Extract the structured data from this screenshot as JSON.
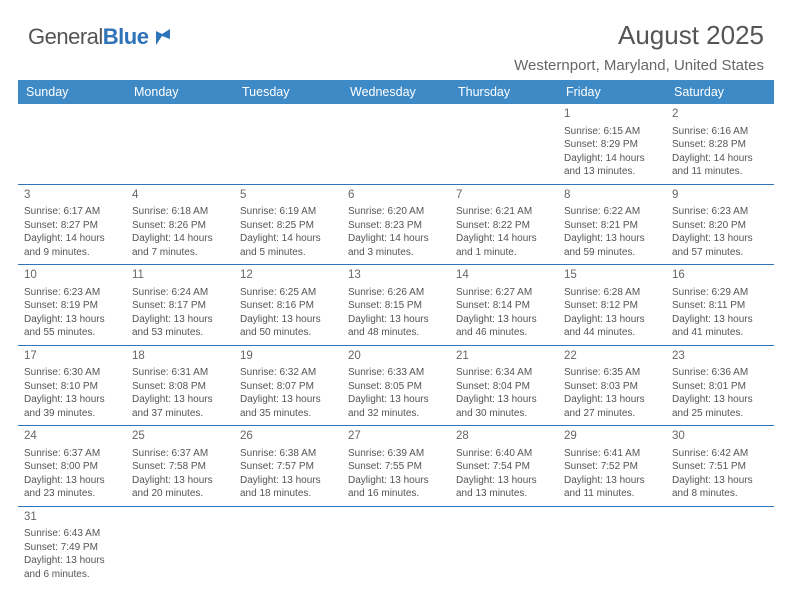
{
  "logo": {
    "part1": "General",
    "part2": "Blue"
  },
  "title": "August 2025",
  "location": "Westernport, Maryland, United States",
  "colors": {
    "header_bg": "#3d8ac7",
    "header_text": "#ffffff",
    "rule": "#2f73b8",
    "body_text": "#555555",
    "logo_gray": "#555555",
    "logo_blue": "#2f73b8"
  },
  "dayNames": [
    "Sunday",
    "Monday",
    "Tuesday",
    "Wednesday",
    "Thursday",
    "Friday",
    "Saturday"
  ],
  "weeks": [
    [
      null,
      null,
      null,
      null,
      null,
      {
        "n": "1",
        "sr": "6:15 AM",
        "ss": "8:29 PM",
        "dl": "14 hours and 13 minutes."
      },
      {
        "n": "2",
        "sr": "6:16 AM",
        "ss": "8:28 PM",
        "dl": "14 hours and 11 minutes."
      }
    ],
    [
      {
        "n": "3",
        "sr": "6:17 AM",
        "ss": "8:27 PM",
        "dl": "14 hours and 9 minutes."
      },
      {
        "n": "4",
        "sr": "6:18 AM",
        "ss": "8:26 PM",
        "dl": "14 hours and 7 minutes."
      },
      {
        "n": "5",
        "sr": "6:19 AM",
        "ss": "8:25 PM",
        "dl": "14 hours and 5 minutes."
      },
      {
        "n": "6",
        "sr": "6:20 AM",
        "ss": "8:23 PM",
        "dl": "14 hours and 3 minutes."
      },
      {
        "n": "7",
        "sr": "6:21 AM",
        "ss": "8:22 PM",
        "dl": "14 hours and 1 minute."
      },
      {
        "n": "8",
        "sr": "6:22 AM",
        "ss": "8:21 PM",
        "dl": "13 hours and 59 minutes."
      },
      {
        "n": "9",
        "sr": "6:23 AM",
        "ss": "8:20 PM",
        "dl": "13 hours and 57 minutes."
      }
    ],
    [
      {
        "n": "10",
        "sr": "6:23 AM",
        "ss": "8:19 PM",
        "dl": "13 hours and 55 minutes."
      },
      {
        "n": "11",
        "sr": "6:24 AM",
        "ss": "8:17 PM",
        "dl": "13 hours and 53 minutes."
      },
      {
        "n": "12",
        "sr": "6:25 AM",
        "ss": "8:16 PM",
        "dl": "13 hours and 50 minutes."
      },
      {
        "n": "13",
        "sr": "6:26 AM",
        "ss": "8:15 PM",
        "dl": "13 hours and 48 minutes."
      },
      {
        "n": "14",
        "sr": "6:27 AM",
        "ss": "8:14 PM",
        "dl": "13 hours and 46 minutes."
      },
      {
        "n": "15",
        "sr": "6:28 AM",
        "ss": "8:12 PM",
        "dl": "13 hours and 44 minutes."
      },
      {
        "n": "16",
        "sr": "6:29 AM",
        "ss": "8:11 PM",
        "dl": "13 hours and 41 minutes."
      }
    ],
    [
      {
        "n": "17",
        "sr": "6:30 AM",
        "ss": "8:10 PM",
        "dl": "13 hours and 39 minutes."
      },
      {
        "n": "18",
        "sr": "6:31 AM",
        "ss": "8:08 PM",
        "dl": "13 hours and 37 minutes."
      },
      {
        "n": "19",
        "sr": "6:32 AM",
        "ss": "8:07 PM",
        "dl": "13 hours and 35 minutes."
      },
      {
        "n": "20",
        "sr": "6:33 AM",
        "ss": "8:05 PM",
        "dl": "13 hours and 32 minutes."
      },
      {
        "n": "21",
        "sr": "6:34 AM",
        "ss": "8:04 PM",
        "dl": "13 hours and 30 minutes."
      },
      {
        "n": "22",
        "sr": "6:35 AM",
        "ss": "8:03 PM",
        "dl": "13 hours and 27 minutes."
      },
      {
        "n": "23",
        "sr": "6:36 AM",
        "ss": "8:01 PM",
        "dl": "13 hours and 25 minutes."
      }
    ],
    [
      {
        "n": "24",
        "sr": "6:37 AM",
        "ss": "8:00 PM",
        "dl": "13 hours and 23 minutes."
      },
      {
        "n": "25",
        "sr": "6:37 AM",
        "ss": "7:58 PM",
        "dl": "13 hours and 20 minutes."
      },
      {
        "n": "26",
        "sr": "6:38 AM",
        "ss": "7:57 PM",
        "dl": "13 hours and 18 minutes."
      },
      {
        "n": "27",
        "sr": "6:39 AM",
        "ss": "7:55 PM",
        "dl": "13 hours and 16 minutes."
      },
      {
        "n": "28",
        "sr": "6:40 AM",
        "ss": "7:54 PM",
        "dl": "13 hours and 13 minutes."
      },
      {
        "n": "29",
        "sr": "6:41 AM",
        "ss": "7:52 PM",
        "dl": "13 hours and 11 minutes."
      },
      {
        "n": "30",
        "sr": "6:42 AM",
        "ss": "7:51 PM",
        "dl": "13 hours and 8 minutes."
      }
    ],
    [
      {
        "n": "31",
        "sr": "6:43 AM",
        "ss": "7:49 PM",
        "dl": "13 hours and 6 minutes."
      },
      null,
      null,
      null,
      null,
      null,
      null
    ]
  ],
  "labels": {
    "sunrise": "Sunrise:",
    "sunset": "Sunset:",
    "daylight": "Daylight:"
  }
}
